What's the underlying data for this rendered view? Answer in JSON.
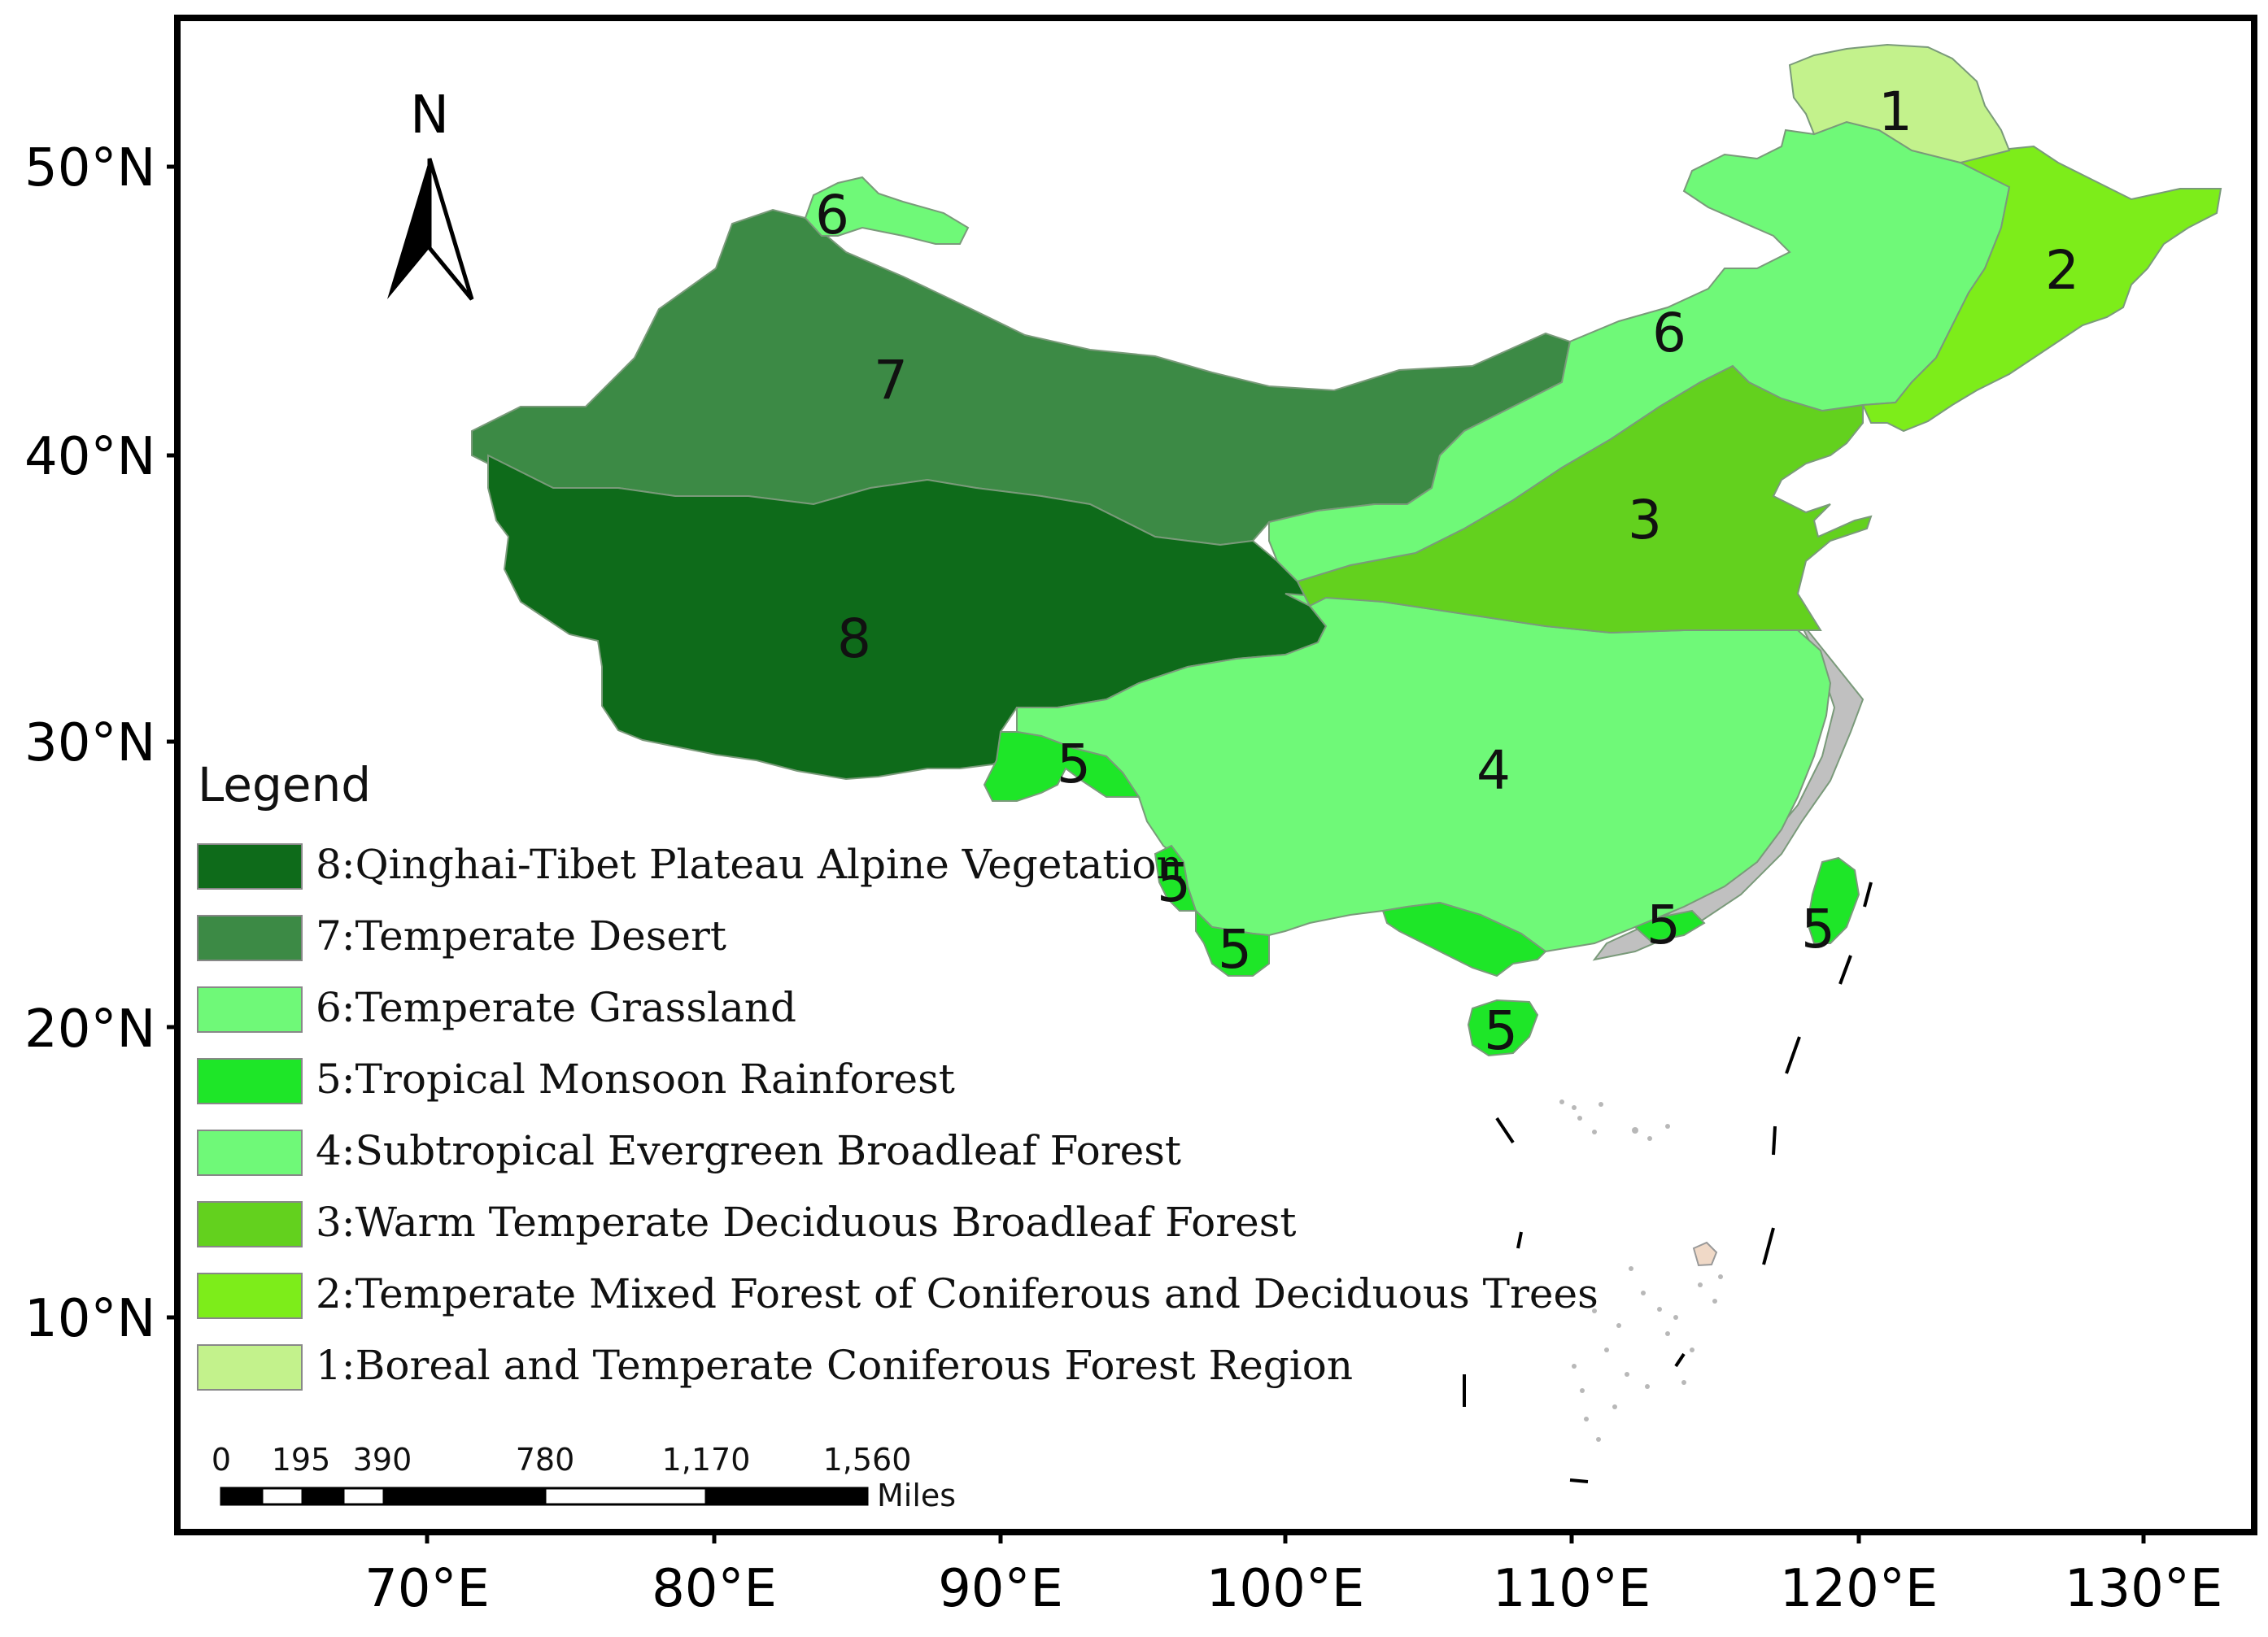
{
  "map": {
    "north_label": "N",
    "lat_labels": [
      "50°N",
      "40°N",
      "30°N",
      "20°N",
      "10°N"
    ],
    "lon_labels": [
      "70°E",
      "80°E",
      "90°E",
      "100°E",
      "110°E",
      "120°E",
      "130°E"
    ],
    "colors": {
      "r1": "#c3f28c",
      "r2": "#7ded1a",
      "r3": "#63d11e",
      "r4": "#6ff978",
      "r5": "#1ee628",
      "r6": "#6ff978",
      "r7": "#3c8a45",
      "r8": "#0e6b1a",
      "coast": "#c0c0c0"
    },
    "region_numbers": {
      "r1": "1",
      "r2": "2",
      "r3": "3",
      "r4": "4",
      "r5": "5",
      "r6": "6",
      "r7": "7",
      "r8": "8"
    }
  },
  "legend": {
    "title": "Legend",
    "items": [
      {
        "label": "8:Qinghai-Tibet Plateau Alpine Vegetation",
        "color": "#0e6b1a"
      },
      {
        "label": "7:Temperate Desert",
        "color": "#3c8a45"
      },
      {
        "label": "6:Temperate Grassland",
        "color": "#6ff978"
      },
      {
        "label": "5:Tropical Monsoon Rainforest",
        "color": "#1ee628"
      },
      {
        "label": "4:Subtropical Evergreen Broadleaf Forest",
        "color": "#6ff978"
      },
      {
        "label": "3:Warm Temperate Deciduous Broadleaf Forest",
        "color": "#63d11e"
      },
      {
        "label": "2:Temperate Mixed Forest of Coniferous and Deciduous Trees",
        "color": "#7ded1a"
      },
      {
        "label": "1:Boreal and Temperate Coniferous Forest Region",
        "color": "#c3f28c"
      }
    ]
  },
  "scale_bar": {
    "ticks": [
      "0",
      "195",
      "390",
      "780",
      "1,170",
      "1,560"
    ],
    "unit": "Miles"
  }
}
